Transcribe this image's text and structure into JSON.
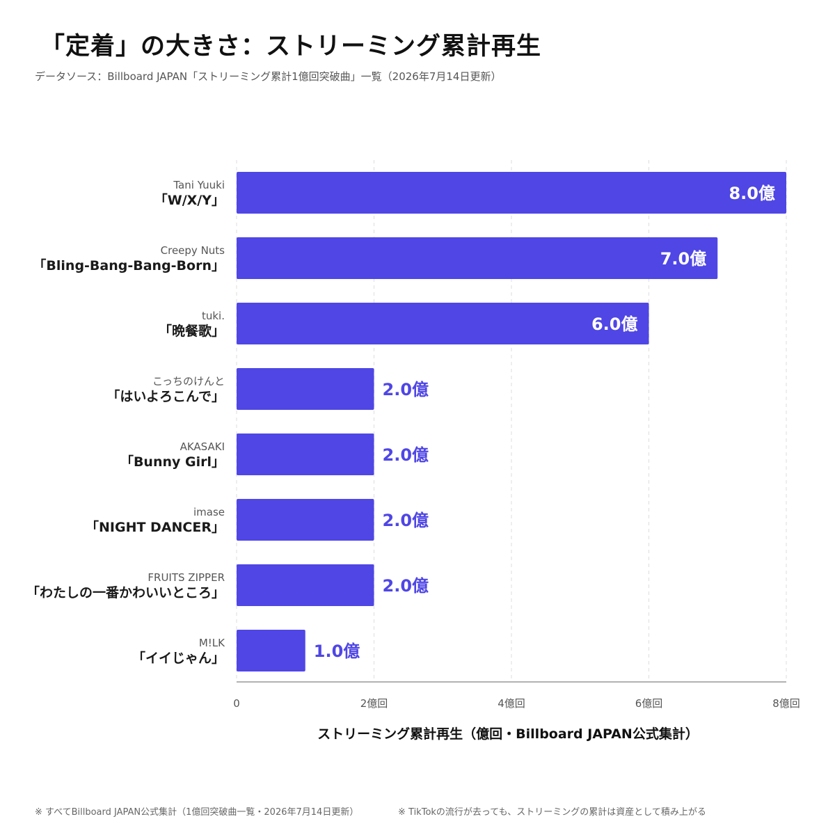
{
  "title": "「定着」の大きさ：ストリーミング累計再生",
  "subtitle": "データソース：Billboard JAPAN「ストリーミング累計1億回突破曲」一覧（2026年7月14日更新）",
  "footnotes": {
    "left": "※ すべてBillboard JAPAN公式集計（1億回突破曲一覧・2026年7月14日更新）",
    "right": "※ TikTokの流行が去っても、ストリーミングの累計は資産として積み上がる"
  },
  "chart_data": {
    "type": "bar",
    "orientation": "horizontal",
    "categories": [
      {
        "artist": "Tani Yuuki",
        "song": "「W/X/Y」"
      },
      {
        "artist": "Creepy Nuts",
        "song": "「Bling-Bang-Bang-Born」"
      },
      {
        "artist": "tuki.",
        "song": "「晩餐歌」"
      },
      {
        "artist": "こっちのけんと",
        "song": "「はいよろこんで」"
      },
      {
        "artist": "AKASAKI",
        "song": "「Bunny Girl」"
      },
      {
        "artist": "imase",
        "song": "「NIGHT DANCER」"
      },
      {
        "artist": "FRUITS ZIPPER",
        "song": "「わたしの一番かわいいところ」"
      },
      {
        "artist": "M!LK",
        "song": "「イイじゃん」"
      }
    ],
    "values": [
      8.0,
      7.0,
      6.0,
      2.0,
      2.0,
      2.0,
      2.0,
      1.0
    ],
    "data_labels": [
      "8.0億",
      "7.0億",
      "6.0億",
      "2.0億",
      "2.0億",
      "2.0億",
      "2.0億",
      "1.0億"
    ],
    "xlim": [
      0,
      8
    ],
    "xticks": [
      0,
      2,
      4,
      6,
      8
    ],
    "xtick_labels": [
      "0",
      "2億回",
      "4億回",
      "6億回",
      "8億回"
    ],
    "xlabel": "ストリーミング累計再生（億回・Billboard JAPAN公式集計）",
    "grid": "vertical-dashed",
    "colors": {
      "bar": "#4f46e5",
      "label_inside": "#ffffff",
      "label_outside": "#4f46e5",
      "grid": "#dddddd",
      "axis": "#999999"
    }
  }
}
